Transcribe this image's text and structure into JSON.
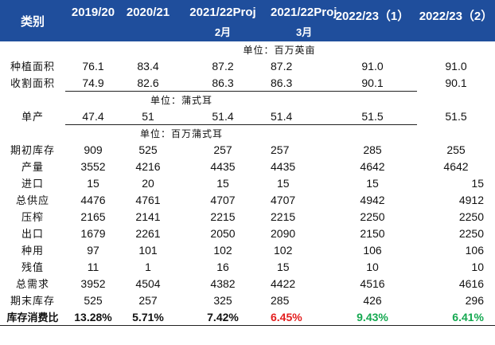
{
  "header": {
    "label": "类别",
    "columns": [
      "2019/20",
      "2020/21",
      "2021/22Proj",
      "2021/22Proj",
      "2022/23（1）",
      "2022/23（2）"
    ],
    "sub": [
      "",
      "",
      "2月",
      "3月",
      "",
      ""
    ]
  },
  "units": [
    "单位：百万英亩",
    "单位：蒲式耳",
    "单位：百万蒲式耳"
  ],
  "rows": [
    {
      "label": "种植面积",
      "values": [
        "76.1",
        "83.4",
        "87.2",
        "87.2",
        "91.0",
        "91.0"
      ]
    },
    {
      "label": "收割面积",
      "values": [
        "74.9",
        "82.6",
        "86.3",
        "86.3",
        "90.1",
        "90.1"
      ]
    },
    {
      "label": "单产",
      "values": [
        "47.4",
        "51",
        "51.4",
        "51.4",
        "51.5",
        "51.5"
      ]
    },
    {
      "label": "期初库存",
      "values": [
        "909",
        "525",
        "257",
        "257",
        "285",
        "255"
      ]
    },
    {
      "label": "产量",
      "values": [
        "3552",
        "4216",
        "4435",
        "4435",
        "4642",
        "4642"
      ]
    },
    {
      "label": "进口",
      "values": [
        "15",
        "20",
        "15",
        "15",
        "15",
        "15"
      ]
    },
    {
      "label": "总供应",
      "values": [
        "4476",
        "4761",
        "4707",
        "4707",
        "4942",
        "4912"
      ]
    },
    {
      "label": "压榨",
      "values": [
        "2165",
        "2141",
        "2215",
        "2215",
        "2250",
        "2250"
      ]
    },
    {
      "label": "出口",
      "values": [
        "1679",
        "2261",
        "2050",
        "2090",
        "2150",
        "2250"
      ]
    },
    {
      "label": "种用",
      "values": [
        "97",
        "101",
        "102",
        "102",
        "106",
        "106"
      ]
    },
    {
      "label": "残值",
      "values": [
        "11",
        "1",
        "16",
        "15",
        "10",
        "10"
      ]
    },
    {
      "label": "总需求",
      "values": [
        "3952",
        "4504",
        "4382",
        "4422",
        "4516",
        "4616"
      ]
    },
    {
      "label": "期末库存",
      "values": [
        "525",
        "257",
        "325",
        "285",
        "426",
        "296"
      ]
    },
    {
      "label": "库存消费比",
      "values": [
        "13.28%",
        "5.71%",
        "7.42%",
        "6.45%",
        "9.43%",
        "6.41%"
      ]
    }
  ],
  "colors": {
    "header_bg": "#1f4e9c",
    "red": "#e31d1d",
    "green": "#14a850"
  }
}
